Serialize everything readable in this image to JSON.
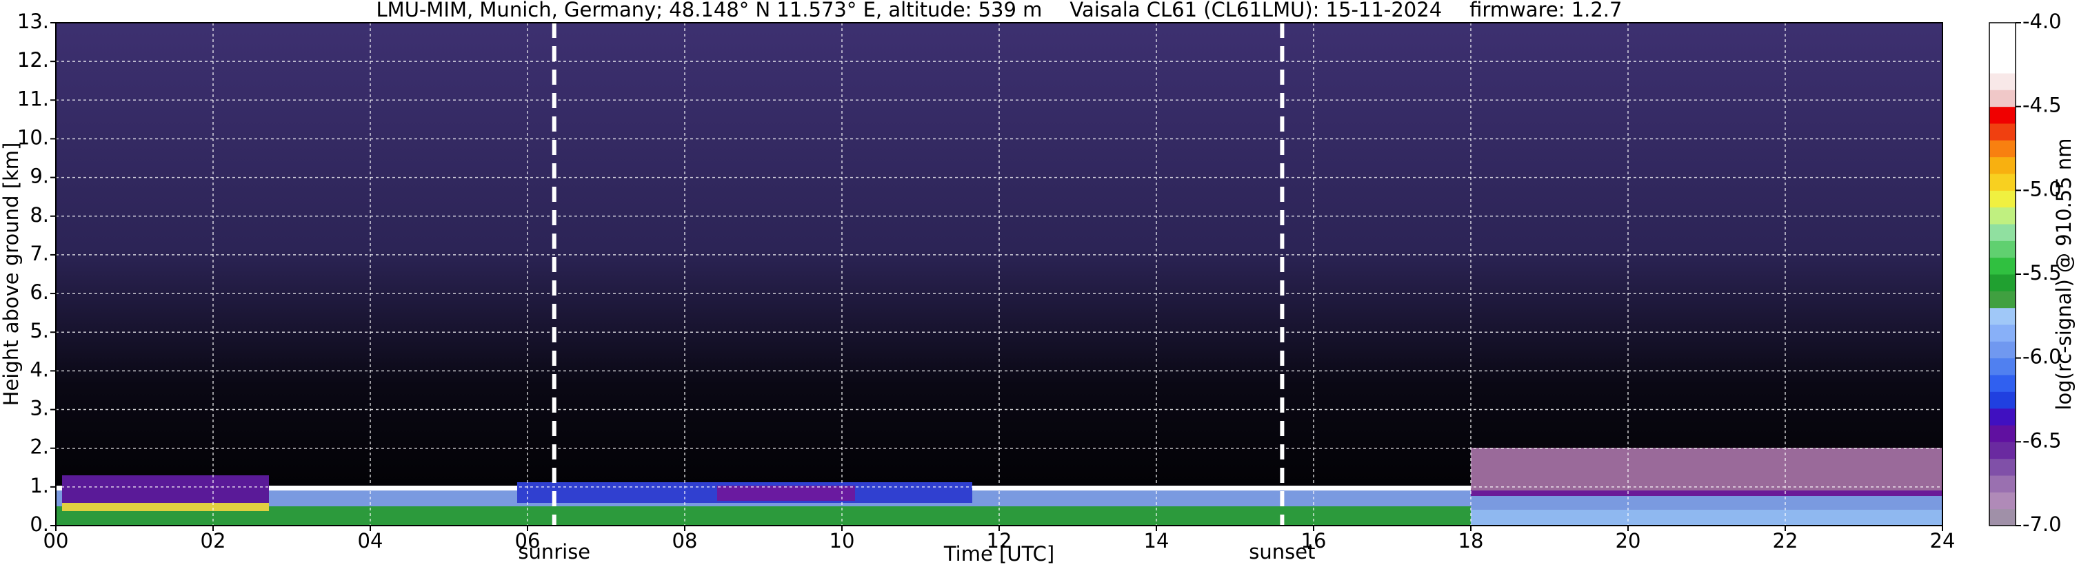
{
  "chart_data": {
    "type": "heatmap",
    "title_parts": [
      "LMU-MIM, Munich, Germany; 48.148° N 11.573° E, altitude: 539 m",
      "Vaisala CL61 (CL61LMU): 15-11-2024",
      "firmware: 1.2.7"
    ],
    "x_label": "Time [UTC]",
    "y_label": "Height above ground [km]",
    "colorbar_label": "log(rc-signal) @ 910.55 nm",
    "xlim": [
      0,
      24
    ],
    "ylim": [
      0,
      13
    ],
    "clim": [
      -7,
      -4
    ],
    "xticks": [
      {
        "value": 0,
        "label": "00"
      },
      {
        "value": 2,
        "label": "02"
      },
      {
        "value": 4,
        "label": "04"
      },
      {
        "value": 6,
        "label": "06"
      },
      {
        "value": 8,
        "label": "08"
      },
      10,
      12,
      14,
      16,
      18,
      20,
      22,
      24
    ],
    "yticks": [
      {
        "value": 0,
        "label": "0."
      },
      {
        "value": 1,
        "label": "1."
      },
      {
        "value": 2,
        "label": "2."
      },
      {
        "value": 3,
        "label": "3."
      },
      {
        "value": 4,
        "label": "4."
      },
      {
        "value": 5,
        "label": "5."
      },
      {
        "value": 6,
        "label": "6."
      },
      {
        "value": 7,
        "label": "7."
      },
      {
        "value": 8,
        "label": "8."
      },
      {
        "value": 9,
        "label": "9."
      },
      {
        "value": 10,
        "label": "10."
      },
      {
        "value": 11,
        "label": "11."
      },
      {
        "value": 12,
        "label": "12."
      },
      {
        "value": 13,
        "label": "13."
      }
    ],
    "cticks": [
      {
        "value": -4,
        "label": "-4.0"
      },
      -4.5,
      {
        "value": -5,
        "label": "-5.0"
      },
      -5.5,
      {
        "value": -6,
        "label": "-6.0"
      },
      -6.5,
      {
        "value": -7,
        "label": "-7.0"
      }
    ],
    "colorbar_colors": [
      "#a090a8",
      "#b08ab8",
      "#9a70b0",
      "#8050a8",
      "#6a2aa0",
      "#6010a0",
      "#4010c0",
      "#2040e0",
      "#3060f0",
      "#5080f0",
      "#7098f0",
      "#88b0f8",
      "#a0c8f8",
      "#40a040",
      "#20a030",
      "#30c040",
      "#60d070",
      "#90e0a0",
      "#c0f080",
      "#f0f040",
      "#f8d020",
      "#f8b010",
      "#f88010",
      "#f04010",
      "#f00000",
      "#f0c8c8",
      "#f8e8e8",
      "#ffffff",
      "#ffffff",
      "#ffffff"
    ],
    "grid": true,
    "annotations": [
      {
        "text": "sunrise",
        "x": 6.34
      },
      {
        "text": "sunset",
        "x": 15.6
      }
    ]
  }
}
